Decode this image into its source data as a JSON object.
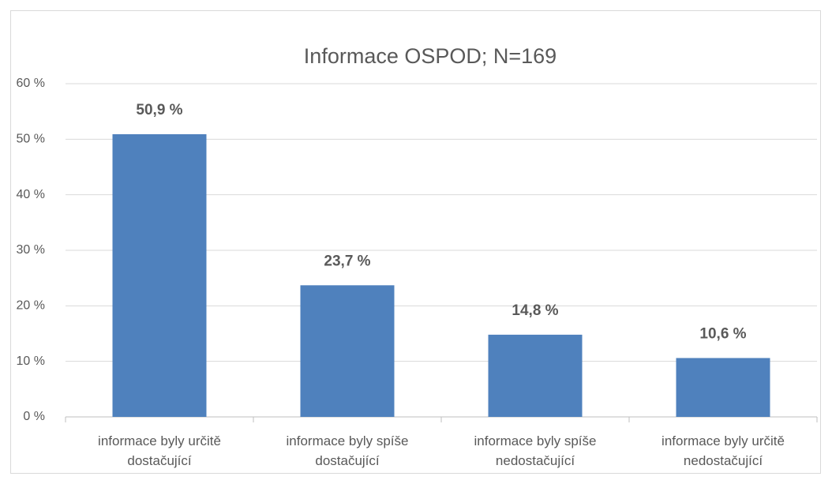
{
  "chart_data": {
    "type": "bar",
    "title": "Informace OSPOD; N=169",
    "categories": [
      "informace byly určitě dostačující",
      "informace byly spíše dostačující",
      "informace byly spíše nedostačující",
      "informace byly určitě nedostačující"
    ],
    "values": [
      50.9,
      23.7,
      14.8,
      10.6
    ],
    "value_labels": [
      "50,9 %",
      "23,7 %",
      "14,8 %",
      "10,6 %"
    ],
    "color": "#4f81bd",
    "ylim": [
      0,
      60
    ],
    "yticks": [
      {
        "value": 0,
        "label": "0 %"
      },
      {
        "value": 10,
        "label": "10 %"
      },
      {
        "value": 20,
        "label": "20 %"
      },
      {
        "value": 30,
        "label": "30 %"
      },
      {
        "value": 40,
        "label": "40 %"
      },
      {
        "value": 50,
        "label": "50 %"
      },
      {
        "value": 60,
        "label": "60 %"
      }
    ],
    "grid": true
  }
}
